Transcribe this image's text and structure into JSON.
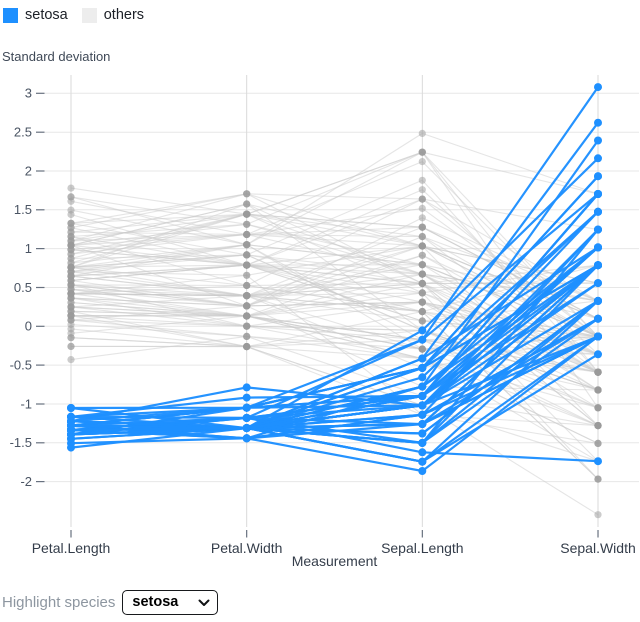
{
  "legend": {
    "items": [
      {
        "label": "setosa",
        "color": "#1e90ff"
      },
      {
        "label": "others",
        "color": "#ededed"
      }
    ]
  },
  "controls": {
    "label": "Highlight species",
    "selected": "setosa",
    "options": [
      "setosa"
    ]
  },
  "chart_data": {
    "type": "line",
    "variant": "parallel-coordinates",
    "title": "",
    "xlabel": "Measurement",
    "ylabel": "Standard deviation",
    "categories": [
      "Petal.Length",
      "Petal.Width",
      "Sepal.Length",
      "Sepal.Width"
    ],
    "y_ticks": [
      3,
      2.5,
      2,
      1.5,
      1,
      0.5,
      0,
      -0.5,
      -1,
      -1.5,
      -2
    ],
    "ylim": [
      -2.6,
      3.25
    ],
    "grid": true,
    "legend_position": "top-left",
    "standardized": true,
    "highlight": "setosa",
    "colors": {
      "setosa": "#1e90ff",
      "others_line": "#cccccc",
      "others_point": "#999999"
    },
    "series": [
      {
        "name": "setosa",
        "rows": [
          [
            1.4,
            0.2,
            5.1,
            3.5
          ],
          [
            1.4,
            0.2,
            4.9,
            3.0
          ],
          [
            1.3,
            0.2,
            4.7,
            3.2
          ],
          [
            1.5,
            0.2,
            4.6,
            3.1
          ],
          [
            1.4,
            0.2,
            5.0,
            3.6
          ],
          [
            1.7,
            0.4,
            5.4,
            3.9
          ],
          [
            1.4,
            0.3,
            4.6,
            3.4
          ],
          [
            1.5,
            0.2,
            5.0,
            3.4
          ],
          [
            1.4,
            0.2,
            4.4,
            2.9
          ],
          [
            1.5,
            0.1,
            4.9,
            3.1
          ],
          [
            1.5,
            0.2,
            5.4,
            3.7
          ],
          [
            1.6,
            0.2,
            4.8,
            3.4
          ],
          [
            1.4,
            0.1,
            4.8,
            3.0
          ],
          [
            1.1,
            0.1,
            4.3,
            3.0
          ],
          [
            1.2,
            0.2,
            5.8,
            4.0
          ],
          [
            1.5,
            0.4,
            5.7,
            4.4
          ],
          [
            1.3,
            0.4,
            5.4,
            3.9
          ],
          [
            1.4,
            0.3,
            5.1,
            3.5
          ],
          [
            1.7,
            0.3,
            5.7,
            3.8
          ],
          [
            1.5,
            0.3,
            5.1,
            3.8
          ],
          [
            1.7,
            0.2,
            5.4,
            3.4
          ],
          [
            1.5,
            0.4,
            5.1,
            3.7
          ],
          [
            1.0,
            0.2,
            4.6,
            3.6
          ],
          [
            1.7,
            0.5,
            5.1,
            3.3
          ],
          [
            1.9,
            0.2,
            4.8,
            3.4
          ],
          [
            1.6,
            0.2,
            5.0,
            3.0
          ],
          [
            1.6,
            0.4,
            5.0,
            3.4
          ],
          [
            1.5,
            0.2,
            5.2,
            3.5
          ],
          [
            1.4,
            0.2,
            5.2,
            3.4
          ],
          [
            1.6,
            0.2,
            4.7,
            3.2
          ],
          [
            1.6,
            0.2,
            4.8,
            3.1
          ],
          [
            1.5,
            0.4,
            5.4,
            3.4
          ],
          [
            1.5,
            0.1,
            5.2,
            4.1
          ],
          [
            1.4,
            0.2,
            5.5,
            4.2
          ],
          [
            1.5,
            0.2,
            4.9,
            3.1
          ],
          [
            1.2,
            0.2,
            5.0,
            3.2
          ],
          [
            1.3,
            0.2,
            5.5,
            3.5
          ],
          [
            1.4,
            0.1,
            4.9,
            3.6
          ],
          [
            1.3,
            0.2,
            4.4,
            3.0
          ],
          [
            1.5,
            0.2,
            5.1,
            3.4
          ],
          [
            1.3,
            0.3,
            5.0,
            3.5
          ],
          [
            1.3,
            0.3,
            4.5,
            2.3
          ],
          [
            1.3,
            0.2,
            4.4,
            3.2
          ],
          [
            1.6,
            0.6,
            5.0,
            3.5
          ],
          [
            1.9,
            0.4,
            5.1,
            3.8
          ],
          [
            1.4,
            0.3,
            4.8,
            3.0
          ],
          [
            1.6,
            0.2,
            5.1,
            3.8
          ],
          [
            1.4,
            0.2,
            4.6,
            3.2
          ],
          [
            1.5,
            0.2,
            5.3,
            3.7
          ],
          [
            1.4,
            0.2,
            5.0,
            3.3
          ]
        ]
      },
      {
        "name": "others",
        "rows": [
          [
            4.7,
            1.4,
            7.0,
            3.2
          ],
          [
            4.5,
            1.5,
            6.4,
            3.2
          ],
          [
            4.9,
            1.5,
            6.9,
            3.1
          ],
          [
            4.0,
            1.3,
            5.5,
            2.3
          ],
          [
            4.6,
            1.5,
            6.5,
            2.8
          ],
          [
            4.5,
            1.3,
            5.7,
            2.8
          ],
          [
            4.7,
            1.6,
            6.3,
            3.3
          ],
          [
            3.3,
            1.0,
            4.9,
            2.4
          ],
          [
            4.6,
            1.3,
            6.6,
            2.9
          ],
          [
            3.9,
            1.4,
            5.2,
            2.7
          ],
          [
            3.5,
            1.0,
            5.0,
            2.0
          ],
          [
            4.2,
            1.5,
            5.9,
            3.0
          ],
          [
            4.0,
            1.0,
            6.0,
            2.2
          ],
          [
            4.7,
            1.4,
            6.1,
            2.9
          ],
          [
            3.6,
            1.3,
            5.6,
            2.9
          ],
          [
            4.4,
            1.4,
            6.7,
            3.1
          ],
          [
            4.5,
            1.5,
            5.6,
            3.0
          ],
          [
            4.1,
            1.0,
            5.8,
            2.7
          ],
          [
            4.5,
            1.5,
            6.2,
            2.2
          ],
          [
            3.9,
            1.1,
            5.6,
            2.5
          ],
          [
            4.8,
            1.8,
            5.9,
            3.2
          ],
          [
            4.0,
            1.3,
            6.1,
            2.8
          ],
          [
            4.9,
            1.5,
            6.3,
            2.5
          ],
          [
            4.7,
            1.2,
            6.1,
            2.8
          ],
          [
            4.3,
            1.3,
            6.4,
            2.9
          ],
          [
            4.4,
            1.4,
            6.6,
            3.0
          ],
          [
            4.8,
            1.4,
            6.8,
            2.8
          ],
          [
            5.0,
            1.7,
            6.7,
            3.0
          ],
          [
            4.5,
            1.5,
            6.0,
            2.9
          ],
          [
            3.5,
            1.0,
            5.7,
            2.6
          ],
          [
            3.8,
            1.1,
            5.5,
            2.4
          ],
          [
            3.7,
            1.0,
            5.5,
            2.4
          ],
          [
            3.9,
            1.2,
            5.8,
            2.7
          ],
          [
            5.1,
            1.6,
            6.0,
            2.7
          ],
          [
            4.5,
            1.5,
            5.4,
            3.0
          ],
          [
            4.5,
            1.6,
            6.0,
            3.4
          ],
          [
            4.7,
            1.5,
            6.7,
            3.1
          ],
          [
            4.4,
            1.3,
            6.3,
            2.3
          ],
          [
            4.1,
            1.3,
            5.6,
            3.0
          ],
          [
            4.0,
            1.3,
            5.5,
            2.5
          ],
          [
            4.4,
            1.2,
            5.5,
            2.6
          ],
          [
            4.6,
            1.4,
            6.1,
            3.0
          ],
          [
            4.0,
            1.2,
            5.8,
            2.6
          ],
          [
            3.3,
            1.0,
            5.0,
            2.3
          ],
          [
            4.2,
            1.3,
            5.6,
            2.7
          ],
          [
            4.2,
            1.2,
            5.7,
            3.0
          ],
          [
            4.2,
            1.3,
            5.7,
            2.9
          ],
          [
            4.3,
            1.3,
            6.2,
            2.9
          ],
          [
            3.0,
            1.1,
            5.1,
            2.5
          ],
          [
            4.1,
            1.3,
            5.7,
            2.8
          ],
          [
            6.0,
            2.5,
            6.3,
            3.3
          ],
          [
            5.1,
            1.9,
            5.8,
            2.7
          ],
          [
            5.9,
            2.1,
            7.1,
            3.0
          ],
          [
            5.6,
            1.8,
            6.3,
            2.9
          ],
          [
            5.8,
            2.2,
            6.5,
            3.0
          ],
          [
            6.6,
            2.1,
            7.6,
            3.0
          ],
          [
            4.5,
            1.7,
            4.9,
            2.5
          ],
          [
            6.3,
            1.8,
            7.3,
            2.9
          ],
          [
            5.8,
            1.8,
            6.7,
            2.5
          ],
          [
            6.1,
            2.5,
            7.2,
            3.6
          ],
          [
            5.1,
            2.0,
            6.5,
            3.2
          ],
          [
            5.3,
            1.9,
            6.4,
            2.7
          ],
          [
            5.5,
            2.1,
            6.8,
            3.0
          ],
          [
            5.0,
            2.0,
            5.7,
            2.5
          ],
          [
            5.1,
            2.4,
            5.8,
            2.8
          ],
          [
            5.3,
            2.3,
            6.4,
            3.2
          ],
          [
            5.5,
            1.8,
            6.5,
            3.0
          ],
          [
            6.7,
            2.2,
            7.7,
            3.8
          ],
          [
            6.9,
            2.3,
            7.7,
            2.6
          ],
          [
            5.0,
            1.5,
            6.0,
            2.2
          ],
          [
            5.7,
            2.3,
            6.9,
            3.2
          ],
          [
            4.9,
            2.0,
            5.6,
            2.8
          ],
          [
            6.7,
            2.0,
            7.7,
            2.8
          ],
          [
            4.9,
            1.8,
            6.3,
            2.7
          ],
          [
            5.7,
            2.1,
            6.7,
            3.3
          ],
          [
            6.0,
            1.8,
            7.2,
            3.2
          ],
          [
            4.8,
            1.8,
            6.2,
            2.8
          ],
          [
            4.9,
            1.8,
            6.1,
            3.0
          ],
          [
            5.6,
            2.1,
            6.4,
            2.8
          ],
          [
            5.8,
            1.6,
            7.2,
            3.0
          ],
          [
            6.1,
            1.9,
            7.4,
            2.8
          ],
          [
            6.4,
            2.0,
            7.9,
            3.8
          ],
          [
            5.6,
            2.2,
            6.4,
            2.8
          ],
          [
            5.1,
            1.5,
            6.3,
            2.8
          ],
          [
            5.6,
            1.4,
            6.1,
            2.6
          ],
          [
            6.1,
            2.3,
            7.7,
            3.0
          ],
          [
            5.6,
            2.4,
            6.3,
            3.4
          ],
          [
            5.5,
            1.8,
            6.4,
            3.1
          ],
          [
            4.8,
            1.8,
            6.0,
            3.0
          ],
          [
            5.4,
            2.1,
            6.9,
            3.1
          ],
          [
            5.6,
            2.4,
            6.7,
            3.1
          ],
          [
            5.1,
            2.3,
            6.9,
            3.1
          ],
          [
            5.1,
            1.9,
            5.8,
            2.7
          ],
          [
            5.9,
            2.3,
            6.8,
            3.2
          ],
          [
            5.7,
            2.5,
            6.7,
            3.3
          ],
          [
            5.2,
            2.3,
            6.7,
            3.0
          ],
          [
            5.0,
            1.9,
            6.3,
            2.5
          ],
          [
            5.2,
            2.0,
            6.5,
            3.0
          ],
          [
            5.4,
            2.3,
            6.2,
            3.4
          ],
          [
            5.1,
            1.8,
            5.9,
            3.0
          ]
        ]
      }
    ]
  }
}
